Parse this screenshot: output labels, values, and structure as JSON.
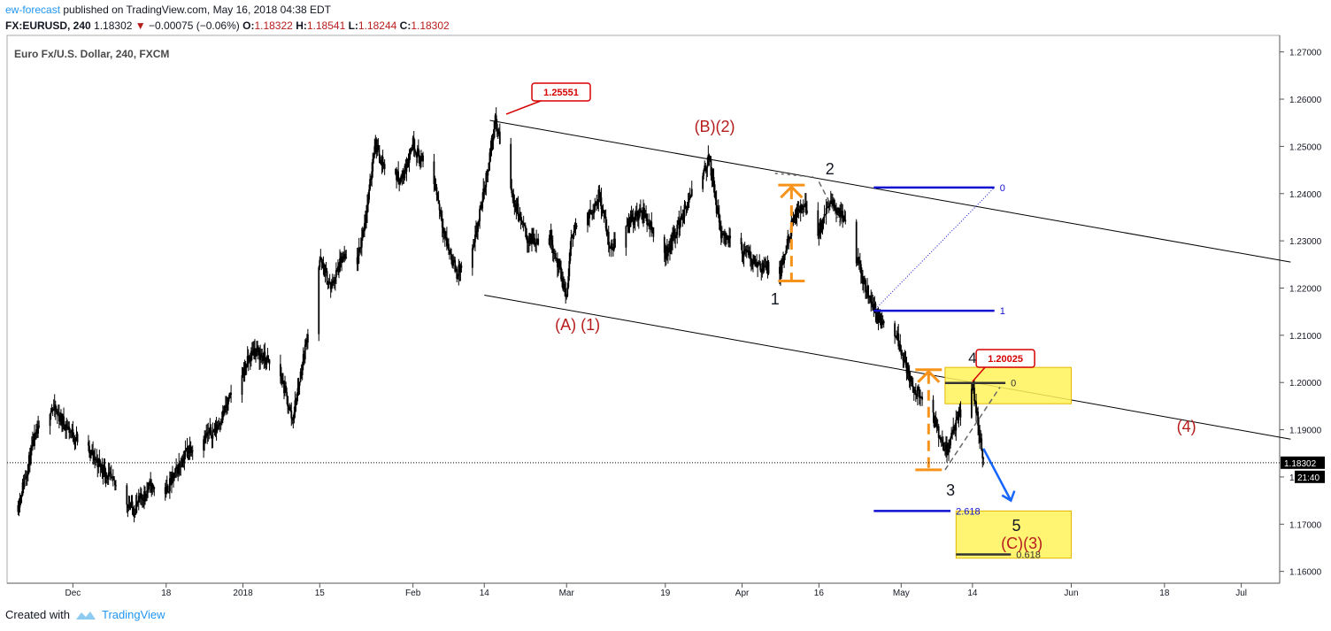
{
  "header": {
    "author": "ew-forecast",
    "published_text": "published on TradingView.com, May 16, 2018 04:38 EDT",
    "symbol": "FX:EURUSD, 240",
    "last": "1.18302",
    "change": "−0.00075 (−0.06%)",
    "open_label": "O:",
    "open": "1.18322",
    "high_label": "H:",
    "high": "1.18541",
    "low_label": "L:",
    "low": "1.18244",
    "close_label": "C:",
    "close": "1.18302"
  },
  "footer": {
    "created_with": "Created with",
    "brand": "TradingView"
  },
  "chart_data": {
    "type": "candlestick",
    "title": "Euro Fx/U.S. Dollar, 240, FXCM",
    "ylim": [
      1.1575,
      1.2735
    ],
    "y_ticks": [
      "1.27000",
      "1.26000",
      "1.25000",
      "1.24000",
      "1.23000",
      "1.22000",
      "1.21000",
      "1.20000",
      "1.19000",
      "1.18000",
      "1.17000",
      "1.16000"
    ],
    "x_ticks": [
      {
        "date": "2017-12-01",
        "label": "Dec"
      },
      {
        "date": "2017-12-18",
        "label": "18"
      },
      {
        "date": "2018-01-01",
        "label": "2018"
      },
      {
        "date": "2018-01-15",
        "label": "15"
      },
      {
        "date": "2018-02-01",
        "label": "Feb"
      },
      {
        "date": "2018-02-14",
        "label": "14"
      },
      {
        "date": "2018-03-01",
        "label": "Mar"
      },
      {
        "date": "2018-03-19",
        "label": "19"
      },
      {
        "date": "2018-04-02",
        "label": "Apr"
      },
      {
        "date": "2018-04-16",
        "label": "16"
      },
      {
        "date": "2018-05-01",
        "label": "May"
      },
      {
        "date": "2018-05-14",
        "label": "14"
      },
      {
        "date": "2018-06-01",
        "label": "Jun"
      },
      {
        "date": "2018-06-18",
        "label": "18"
      },
      {
        "date": "2018-07-02",
        "label": "Jul"
      }
    ],
    "price_path": [
      [
        "2017-11-21",
        1.174
      ],
      [
        "2017-11-24",
        1.188
      ],
      [
        "2017-11-27",
        1.195
      ],
      [
        "2017-12-01",
        1.189
      ],
      [
        "2017-12-05",
        1.184
      ],
      [
        "2017-12-12",
        1.173
      ],
      [
        "2017-12-15",
        1.178
      ],
      [
        "2017-12-18",
        1.177
      ],
      [
        "2017-12-22",
        1.186
      ],
      [
        "2017-12-27",
        1.19
      ],
      [
        "2017-12-31",
        1.2
      ],
      [
        "2018-01-03",
        1.207
      ],
      [
        "2018-01-05",
        1.205
      ],
      [
        "2018-01-08",
        1.201
      ],
      [
        "2018-01-10",
        1.192
      ],
      [
        "2018-01-12",
        1.205
      ],
      [
        "2018-01-15",
        1.226
      ],
      [
        "2018-01-17",
        1.22
      ],
      [
        "2018-01-19",
        1.226
      ],
      [
        "2018-01-22",
        1.226
      ],
      [
        "2018-01-24",
        1.24
      ],
      [
        "2018-01-25",
        1.251
      ],
      [
        "2018-01-27",
        1.245
      ],
      [
        "2018-01-30",
        1.243
      ],
      [
        "2018-02-01",
        1.251
      ],
      [
        "2018-02-02",
        1.248
      ],
      [
        "2018-02-05",
        1.242
      ],
      [
        "2018-02-07",
        1.23
      ],
      [
        "2018-02-09",
        1.223
      ],
      [
        "2018-02-12",
        1.228
      ],
      [
        "2018-02-14",
        1.241
      ],
      [
        "2018-02-16",
        1.2555
      ],
      [
        "2018-02-19",
        1.24
      ],
      [
        "2018-02-22",
        1.23
      ],
      [
        "2018-02-26",
        1.231
      ],
      [
        "2018-03-01",
        1.218
      ],
      [
        "2018-03-02",
        1.232
      ],
      [
        "2018-03-05",
        1.235
      ],
      [
        "2018-03-07",
        1.24
      ],
      [
        "2018-03-09",
        1.228
      ],
      [
        "2018-03-12",
        1.234
      ],
      [
        "2018-03-15",
        1.236
      ],
      [
        "2018-03-19",
        1.227
      ],
      [
        "2018-03-22",
        1.235
      ],
      [
        "2018-03-24",
        1.24
      ],
      [
        "2018-03-27",
        1.2475
      ],
      [
        "2018-03-29",
        1.232
      ],
      [
        "2018-04-02",
        1.228
      ],
      [
        "2018-04-05",
        1.225
      ],
      [
        "2018-04-09",
        1.223
      ],
      [
        "2018-04-11",
        1.233
      ],
      [
        "2018-04-13",
        1.238
      ],
      [
        "2018-04-16",
        1.232
      ],
      [
        "2018-04-18",
        1.238
      ],
      [
        "2018-04-20",
        1.236
      ],
      [
        "2018-04-24",
        1.222
      ],
      [
        "2018-04-27",
        1.213
      ],
      [
        "2018-04-30",
        1.211
      ],
      [
        "2018-05-03",
        1.199
      ],
      [
        "2018-05-06",
        1.195
      ],
      [
        "2018-05-09",
        1.185
      ],
      [
        "2018-05-11",
        1.191
      ],
      [
        "2018-05-14",
        1.2
      ],
      [
        "2018-05-15",
        1.191
      ],
      [
        "2018-05-16",
        1.183
      ]
    ],
    "last_price": "1.18302",
    "countdown": "21:40",
    "price_labels": [
      "1.25551",
      "1.20025"
    ],
    "wave_labels": [
      "(B)(2)",
      "2",
      "1",
      "(A) (1)",
      "4",
      "3",
      "(4)",
      "5",
      "(C)(3)"
    ],
    "fib_levels": [
      "0",
      "1",
      "0",
      "2.618",
      "0.618"
    ],
    "colors": {
      "wave_red": "#b71c1c",
      "wave_black": "#131722",
      "fib_blue": "#1010d0",
      "measure_orange": "#f7931a",
      "zone_yellow": "#fff35a",
      "candle": "#000000"
    }
  }
}
